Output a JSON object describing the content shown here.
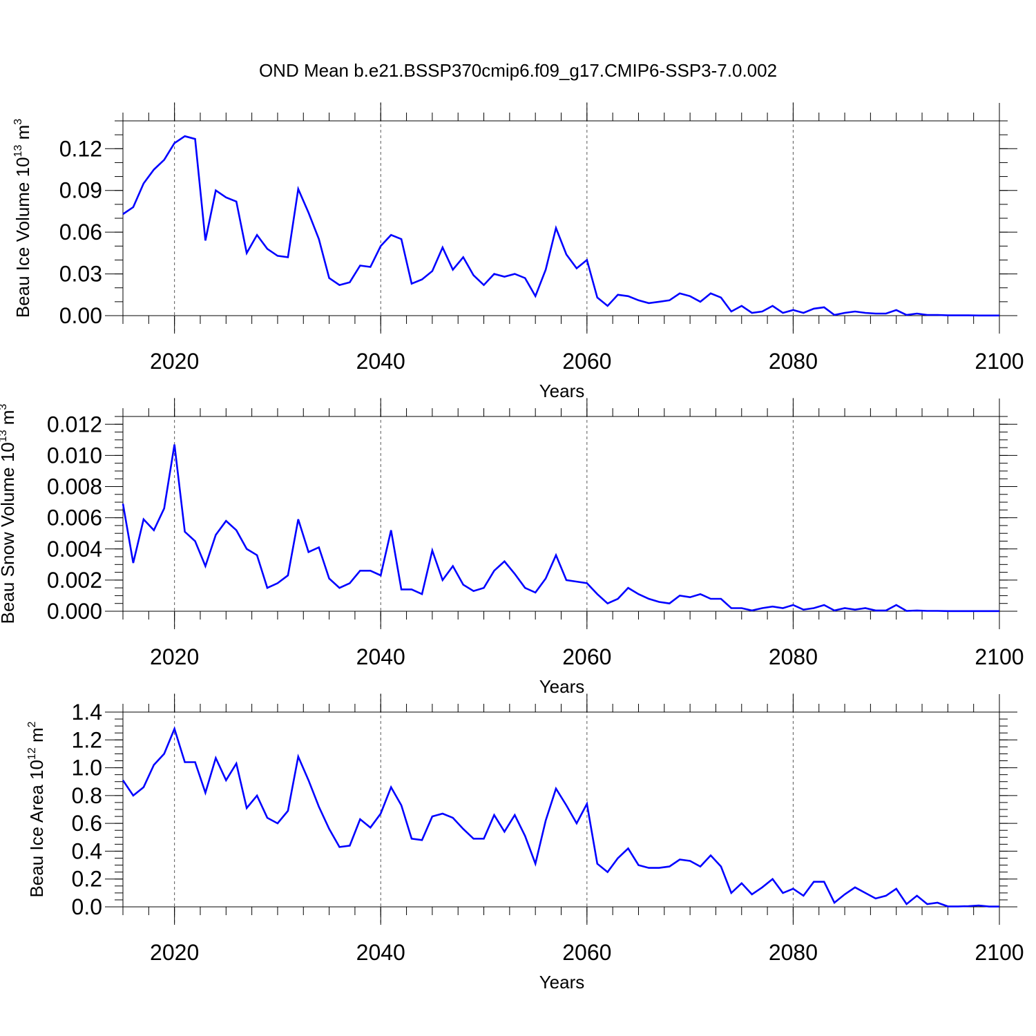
{
  "title": "OND Mean b.e21.BSSP370cmip6.f09_g17.CMIP6-SSP3-7.0.002",
  "chart_data": [
    {
      "type": "line",
      "series_name": "Beau Ice Volume",
      "ylabel_main": "Beau Ice Volume 10",
      "ylabel_exp": "13",
      "ylabel_unit": " m",
      "ylabel_unit_exp": "3",
      "xlabel": "Years",
      "xlim": [
        2015,
        2100
      ],
      "ylim": [
        0,
        0.14
      ],
      "xticks": [
        2020,
        2040,
        2060,
        2080,
        2100
      ],
      "xtick_labels": [
        "2020",
        "2040",
        "2060",
        "2080",
        "2100"
      ],
      "yticks": [
        0,
        0.03,
        0.06,
        0.09,
        0.12
      ],
      "ytick_labels": [
        "0.00",
        "0.03",
        "0.06",
        "0.09",
        "0.12"
      ],
      "yminor": 0.01,
      "gridlines_x": [
        2020,
        2040,
        2060,
        2080
      ],
      "line_color": "#0000ff",
      "x_start": 2015,
      "values": [
        0.073,
        0.078,
        0.095,
        0.105,
        0.112,
        0.124,
        0.129,
        0.127,
        0.054,
        0.09,
        0.085,
        0.082,
        0.045,
        0.058,
        0.048,
        0.043,
        0.042,
        0.091,
        0.074,
        0.055,
        0.027,
        0.022,
        0.024,
        0.036,
        0.035,
        0.05,
        0.058,
        0.055,
        0.023,
        0.026,
        0.032,
        0.049,
        0.033,
        0.042,
        0.029,
        0.022,
        0.03,
        0.028,
        0.03,
        0.027,
        0.014,
        0.033,
        0.063,
        0.044,
        0.034,
        0.04,
        0.013,
        0.007,
        0.015,
        0.014,
        0.011,
        0.009,
        0.01,
        0.011,
        0.016,
        0.014,
        0.01,
        0.016,
        0.013,
        0.003,
        0.007,
        0.002,
        0.003,
        0.007,
        0.002,
        0.004,
        0.002,
        0.005,
        0.006,
        0.0005,
        0.002,
        0.003,
        0.002,
        0.0015,
        0.0015,
        0.004,
        0.0005,
        0.0015,
        0.0005,
        0.0005,
        0.0002,
        0.0002,
        0.0002,
        0.0001,
        0.0001,
        0.0001
      ]
    },
    {
      "type": "line",
      "series_name": "Beau Snow Volume",
      "ylabel_main": "Beau Snow Volume 10",
      "ylabel_exp": "13",
      "ylabel_unit": " m",
      "ylabel_unit_exp": "3",
      "xlabel": "Years",
      "xlim": [
        2015,
        2100
      ],
      "ylim": [
        0,
        0.0125
      ],
      "xticks": [
        2020,
        2040,
        2060,
        2080,
        2100
      ],
      "xtick_labels": [
        "2020",
        "2040",
        "2060",
        "2080",
        "2100"
      ],
      "yticks": [
        0,
        0.002,
        0.004,
        0.006,
        0.008,
        0.01,
        0.012
      ],
      "ytick_labels": [
        "0.000",
        "0.002",
        "0.004",
        "0.006",
        "0.008",
        "0.010",
        "0.012"
      ],
      "yminor": 0.0005,
      "gridlines_x": [
        2020,
        2040,
        2060,
        2080
      ],
      "line_color": "#0000ff",
      "x_start": 2015,
      "values": [
        0.0069,
        0.0031,
        0.0059,
        0.0052,
        0.0066,
        0.0107,
        0.0051,
        0.0045,
        0.0029,
        0.0049,
        0.0058,
        0.0052,
        0.004,
        0.0036,
        0.0015,
        0.0018,
        0.0023,
        0.0059,
        0.0038,
        0.0041,
        0.0021,
        0.0015,
        0.0018,
        0.0026,
        0.0026,
        0.0023,
        0.0052,
        0.0014,
        0.0014,
        0.0011,
        0.0039,
        0.002,
        0.0029,
        0.0017,
        0.0013,
        0.0015,
        0.0026,
        0.0032,
        0.0024,
        0.0015,
        0.0012,
        0.0021,
        0.0036,
        0.002,
        0.0019,
        0.0018,
        0.0011,
        0.0005,
        0.0008,
        0.0015,
        0.0011,
        0.0008,
        0.0006,
        0.0005,
        0.001,
        0.0009,
        0.0011,
        0.0008,
        0.0008,
        0.0002,
        0.0002,
        5e-05,
        0.0002,
        0.0003,
        0.0002,
        0.0004,
        0.0001,
        0.0002,
        0.0004,
        5e-05,
        0.0002,
        0.0001,
        0.0002,
        5e-05,
        5e-05,
        0.0004,
        2e-05,
        5e-05,
        2e-05,
        2e-05,
        1e-05,
        1e-05,
        1e-05,
        1e-05,
        1e-05,
        1e-05
      ]
    },
    {
      "type": "line",
      "series_name": "Beau Ice Area",
      "ylabel_main": "Beau Ice Area 10",
      "ylabel_exp": "12",
      "ylabel_unit": " m",
      "ylabel_unit_exp": "2",
      "xlabel": "Years",
      "xlim": [
        2015,
        2100
      ],
      "ylim": [
        0,
        1.4
      ],
      "xticks": [
        2020,
        2040,
        2060,
        2080,
        2100
      ],
      "xtick_labels": [
        "2020",
        "2040",
        "2060",
        "2080",
        "2100"
      ],
      "yticks": [
        0,
        0.2,
        0.4,
        0.6,
        0.8,
        1.0,
        1.2,
        1.4
      ],
      "ytick_labels": [
        "0.0",
        "0.2",
        "0.4",
        "0.6",
        "0.8",
        "1.0",
        "1.2",
        "1.4"
      ],
      "yminor": 0.05,
      "gridlines_x": [
        2020,
        2040,
        2060,
        2080
      ],
      "line_color": "#0000ff",
      "x_start": 2015,
      "values": [
        0.91,
        0.8,
        0.86,
        1.02,
        1.1,
        1.28,
        1.04,
        1.04,
        0.82,
        1.07,
        0.91,
        1.03,
        0.71,
        0.8,
        0.64,
        0.6,
        0.69,
        1.08,
        0.91,
        0.72,
        0.56,
        0.43,
        0.44,
        0.63,
        0.57,
        0.67,
        0.86,
        0.73,
        0.49,
        0.48,
        0.65,
        0.67,
        0.64,
        0.56,
        0.49,
        0.49,
        0.66,
        0.54,
        0.66,
        0.51,
        0.31,
        0.62,
        0.85,
        0.73,
        0.6,
        0.74,
        0.31,
        0.25,
        0.35,
        0.42,
        0.3,
        0.28,
        0.28,
        0.29,
        0.34,
        0.33,
        0.29,
        0.37,
        0.29,
        0.1,
        0.17,
        0.09,
        0.14,
        0.2,
        0.1,
        0.13,
        0.08,
        0.18,
        0.18,
        0.03,
        0.09,
        0.14,
        0.1,
        0.06,
        0.08,
        0.13,
        0.02,
        0.08,
        0.02,
        0.03,
        0.003,
        0.003,
        0.005,
        0.01,
        0.002,
        0.002
      ]
    }
  ]
}
